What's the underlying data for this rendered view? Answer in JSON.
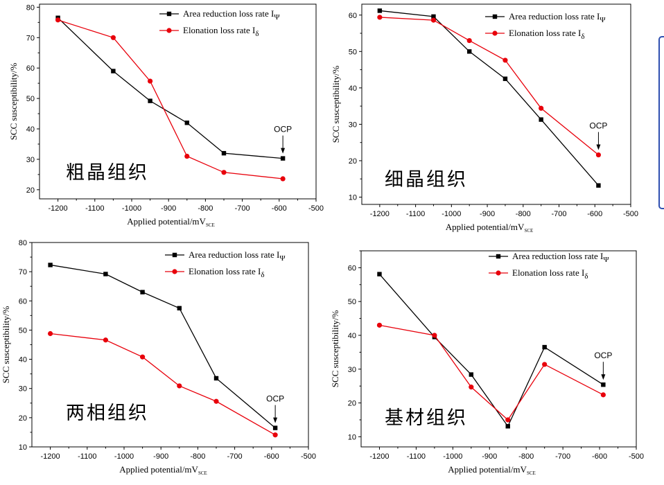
{
  "chart_data": [
    {
      "type": "line",
      "title": "粗晶组织",
      "xlabel": "Applied potential/mV",
      "xlabel_sub": "SCE",
      "ylabel": "SCC susceptibility/%",
      "xlim": [
        -1250,
        -500
      ],
      "ylim": [
        17,
        81
      ],
      "xticks": [
        -1200,
        -1100,
        -1000,
        -900,
        -800,
        -700,
        -600,
        -500
      ],
      "xtick_labels": [
        "-1200",
        "-1100",
        "-1000",
        "-900",
        "-800",
        "-700",
        "-600",
        "-500"
      ],
      "yticks": [
        20,
        30,
        40,
        50,
        60,
        70,
        80
      ],
      "ytick_labels": [
        "20",
        "30",
        "40",
        "50",
        "60",
        "70",
        "80"
      ],
      "legend_position": "top-right",
      "series": [
        {
          "name": "Area reduction loss rate I",
          "sub": "Ψ",
          "color": "#000000",
          "marker": "square",
          "x": [
            -1200,
            -1050,
            -950,
            -850,
            -750,
            -590
          ],
          "y": [
            76.5,
            59,
            49.2,
            42,
            32,
            30.3
          ]
        },
        {
          "name": "Elonation loss rate I",
          "sub": "δ",
          "color": "#e8000b",
          "marker": "circle",
          "x": [
            -1200,
            -1050,
            -950,
            -850,
            -750,
            -590
          ],
          "y": [
            75.8,
            70,
            55.7,
            31,
            25.7,
            23.6
          ]
        }
      ],
      "annotation": {
        "text": "OCP",
        "x": -590,
        "y": 30.3
      }
    },
    {
      "type": "line",
      "title": "细晶组织",
      "xlabel": "Applied potential/mV",
      "xlabel_sub": "SCE",
      "ylabel": "SCC susceptibility/%",
      "xlim": [
        -1250,
        -500
      ],
      "ylim": [
        8,
        63
      ],
      "xticks": [
        -1200,
        -1100,
        -1000,
        -900,
        -800,
        -700,
        -600,
        -500
      ],
      "xtick_labels": [
        "-1200",
        "-1100",
        "-1000",
        "-900",
        "-800",
        "-700",
        "-600",
        "-500"
      ],
      "yticks": [
        10,
        20,
        30,
        40,
        50,
        60
      ],
      "ytick_labels": [
        "10",
        "20",
        "30",
        "40",
        "50",
        "60"
      ],
      "legend_position": "top-right",
      "series": [
        {
          "name": "Area reduction loss rate I",
          "sub": "Ψ",
          "color": "#000000",
          "marker": "square",
          "x": [
            -1200,
            -1050,
            -950,
            -850,
            -750,
            -590
          ],
          "y": [
            61.2,
            59.6,
            50,
            42.5,
            31.3,
            13.2
          ]
        },
        {
          "name": "Elonation loss rate I",
          "sub": "δ",
          "color": "#e8000b",
          "marker": "circle",
          "x": [
            -1200,
            -1050,
            -950,
            -850,
            -750,
            -590
          ],
          "y": [
            59.4,
            58.6,
            53,
            47.6,
            34.4,
            21.6
          ]
        }
      ],
      "annotation": {
        "text": "OCP",
        "x": -590,
        "y": 21.6
      }
    },
    {
      "type": "line",
      "title": "两相组织",
      "xlabel": "Applied potential/mV",
      "xlabel_sub": "SCE",
      "ylabel": "SCC susceptibility/%",
      "xlim": [
        -1250,
        -500
      ],
      "ylim": [
        10,
        80
      ],
      "xticks": [
        -1200,
        -1100,
        -1000,
        -900,
        -800,
        -700,
        -600,
        -500
      ],
      "xtick_labels": [
        "-1200",
        "-1100",
        "-1000",
        "-900",
        "-800",
        "-700",
        "-600",
        "-500"
      ],
      "yticks": [
        10,
        20,
        30,
        40,
        50,
        60,
        70,
        80
      ],
      "ytick_labels": [
        "10",
        "20",
        "30",
        "40",
        "50",
        "60",
        "70",
        "80"
      ],
      "legend_position": "top-right",
      "series": [
        {
          "name": "Area reduction loss rate I",
          "sub": "Ψ",
          "color": "#000000",
          "marker": "square",
          "x": [
            -1200,
            -1050,
            -950,
            -850,
            -750,
            -590
          ],
          "y": [
            72.3,
            69.2,
            63,
            57.5,
            33.5,
            16.5
          ]
        },
        {
          "name": "Elonation loss rate I",
          "sub": "δ",
          "color": "#e8000b",
          "marker": "circle",
          "x": [
            -1200,
            -1050,
            -950,
            -850,
            -750,
            -590
          ],
          "y": [
            48.8,
            46.6,
            40.8,
            30.9,
            25.6,
            14.1
          ]
        }
      ],
      "annotation": {
        "text": "OCP",
        "x": -590,
        "y": 16.5
      }
    },
    {
      "type": "line",
      "title": "基材组织",
      "xlabel": "Applied potential/mV",
      "xlabel_sub": "SCE",
      "ylabel": "SCC susceptibility/%",
      "xlim": [
        -1250,
        -500
      ],
      "ylim": [
        7,
        65
      ],
      "xticks": [
        -1200,
        -1100,
        -1000,
        -900,
        -800,
        -700,
        -600,
        -500
      ],
      "xtick_labels": [
        "-1200",
        "-1100",
        "-1000",
        "-900",
        "-800",
        "-700",
        "-600",
        "-500"
      ],
      "yticks": [
        10,
        20,
        30,
        40,
        50,
        60
      ],
      "ytick_labels": [
        "10",
        "20",
        "30",
        "40",
        "50",
        "60"
      ],
      "legend_position": "top-right",
      "series": [
        {
          "name": "Area reduction loss rate I",
          "sub": "Ψ",
          "color": "#000000",
          "marker": "square",
          "x": [
            -1200,
            -1050,
            -950,
            -850,
            -750,
            -590
          ],
          "y": [
            58.1,
            39.5,
            28.4,
            13.1,
            36.5,
            25.4
          ]
        },
        {
          "name": "Elonation loss rate I",
          "sub": "δ",
          "color": "#e8000b",
          "marker": "circle",
          "x": [
            -1200,
            -1050,
            -950,
            -850,
            -750,
            -590
          ],
          "y": [
            43,
            40,
            24.7,
            15,
            31.4,
            22.4
          ]
        }
      ],
      "annotation": {
        "text": "OCP",
        "x": -590,
        "y": 25.4
      }
    }
  ]
}
